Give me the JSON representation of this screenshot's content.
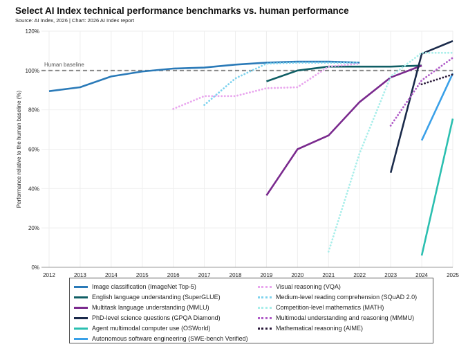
{
  "title": "Select AI Index technical performance benchmarks vs. human performance",
  "subtitle": "Source: AI Index, 2026 | Chart: 2026 AI Index report",
  "chart_data": {
    "type": "line",
    "title": "Select AI Index technical performance benchmarks vs. human performance",
    "xlabel": "",
    "ylabel": "Performance relative to the human baseline (%)",
    "xlim": [
      2012,
      2025
    ],
    "ylim": [
      0,
      120
    ],
    "x_ticks": [
      "2012",
      "2013",
      "2014",
      "2015",
      "2016",
      "2017",
      "2018",
      "2019",
      "2020",
      "2021",
      "2022",
      "2023",
      "2024",
      "2025"
    ],
    "y_ticks": [
      "0%",
      "20%",
      "40%",
      "60%",
      "80%",
      "100%",
      "120%"
    ],
    "grid": true,
    "legend_placement": "bottom",
    "baseline": {
      "label": "Human baseline",
      "value": 100,
      "color": "#888888"
    },
    "series": [
      {
        "name": "Image classification (ImageNet Top-5)",
        "color": "#2a7ab8",
        "style": "solid",
        "x": [
          2012,
          2013,
          2014,
          2015,
          2016,
          2017,
          2018,
          2019,
          2020,
          2021,
          2022
        ],
        "values": [
          89.5,
          91.5,
          97,
          99.5,
          101,
          101.5,
          103,
          104,
          104.5,
          104.5,
          104
        ]
      },
      {
        "name": "English language understanding (SuperGLUE)",
        "color": "#0f5e64",
        "style": "solid",
        "x": [
          2019,
          2020,
          2021,
          2022,
          2023,
          2024
        ],
        "values": [
          94.5,
          100,
          102,
          102,
          102,
          102.5
        ]
      },
      {
        "name": "Multitask language understanding (MMLU)",
        "color": "#7a2a8e",
        "style": "solid",
        "x": [
          2019,
          2020,
          2021,
          2022,
          2023,
          2024
        ],
        "values": [
          36.5,
          60,
          67,
          84,
          96.5,
          102.5
        ]
      },
      {
        "name": "PhD-level science questions (GPQA Diamond)",
        "color": "#1a2a4a",
        "style": "solid",
        "x": [
          2023,
          2024,
          2025
        ],
        "values": [
          48,
          108.5,
          115
        ]
      },
      {
        "name": "Agent multimodal computer use (OSWorld)",
        "color": "#2bbfb0",
        "style": "solid",
        "x": [
          2024,
          2025
        ],
        "values": [
          6,
          75.5
        ]
      },
      {
        "name": "Autonomous software engineering (SWE-bench Verified)",
        "color": "#3aa0e8",
        "style": "solid",
        "x": [
          2024,
          2025
        ],
        "values": [
          64.5,
          98.5
        ]
      },
      {
        "name": "Visual reasoning (VQA)",
        "color": "#e9a6ee",
        "style": "dotted",
        "x": [
          2016,
          2017,
          2018,
          2019,
          2020,
          2021,
          2022
        ],
        "values": [
          80.5,
          87,
          87,
          91,
          91.5,
          102,
          103.5
        ]
      },
      {
        "name": "Medium-level reading comprehension (SQuAD 2.0)",
        "color": "#7fd3ee",
        "style": "dotted",
        "x": [
          2017,
          2018,
          2019,
          2020,
          2021,
          2022
        ],
        "values": [
          82.5,
          96,
          103.5,
          104,
          104,
          104
        ]
      },
      {
        "name": "Competition-level mathematics (MATH)",
        "color": "#a8eeea",
        "style": "dotted",
        "x": [
          2021,
          2022,
          2023,
          2024,
          2025
        ],
        "values": [
          8,
          58,
          97,
          109,
          109
        ]
      },
      {
        "name": "Multimodal understanding and reasoning (MMMU)",
        "color": "#b05cc8",
        "style": "dotted",
        "x": [
          2023,
          2024,
          2025
        ],
        "values": [
          72,
          95,
          106.5
        ]
      },
      {
        "name": "Mathematical reasoning (AIME)",
        "color": "#2a1a3a",
        "style": "dotted",
        "x": [
          2024,
          2025
        ],
        "values": [
          93,
          98
        ]
      }
    ]
  }
}
